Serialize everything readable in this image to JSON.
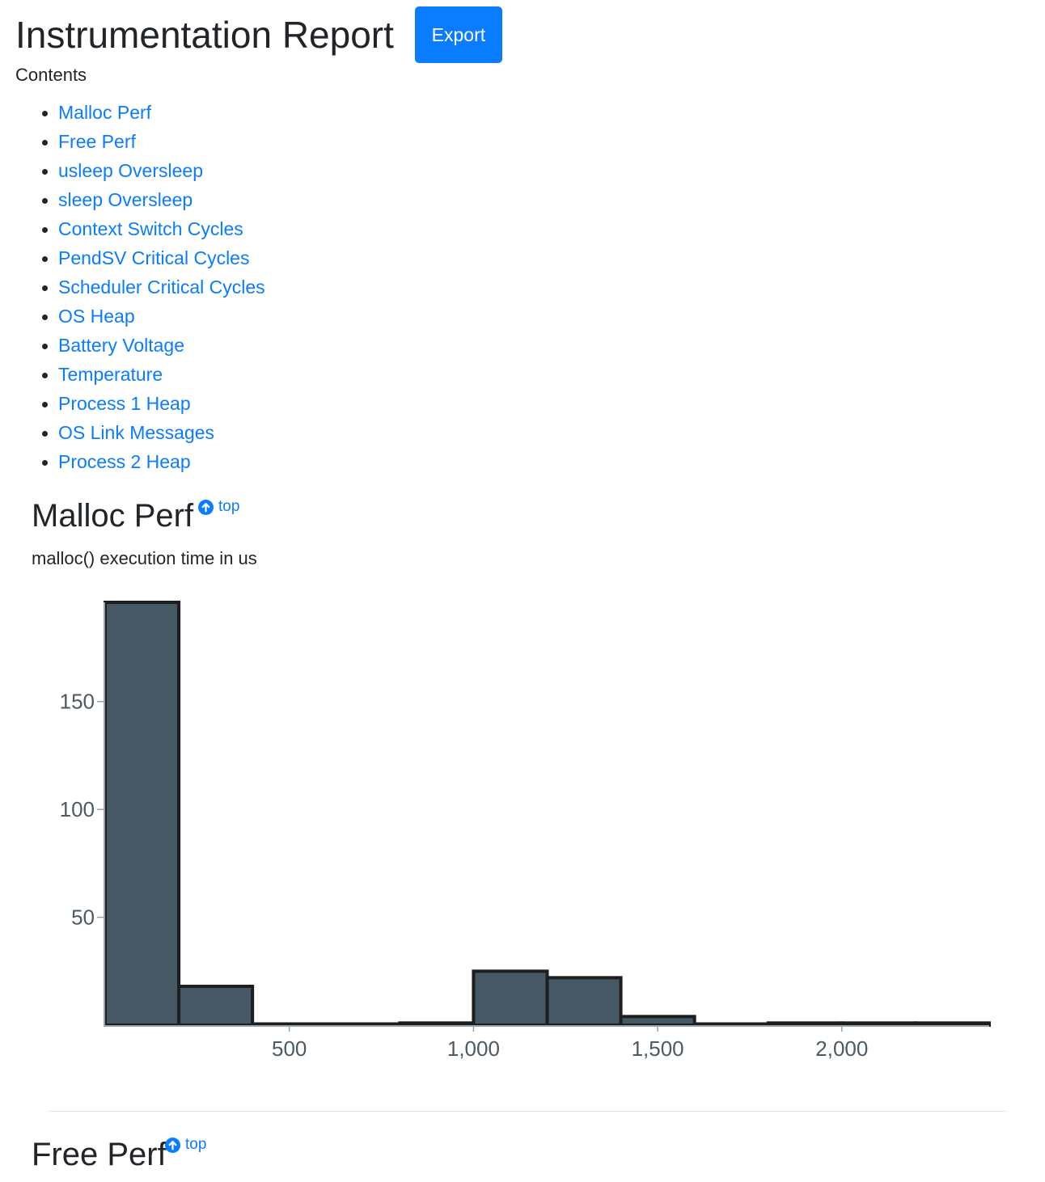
{
  "header": {
    "title": "Instrumentation Report",
    "export_label": "Export"
  },
  "contents": {
    "label": "Contents",
    "items": [
      {
        "label": "Malloc Perf"
      },
      {
        "label": "Free Perf"
      },
      {
        "label": "usleep Oversleep"
      },
      {
        "label": "sleep Oversleep"
      },
      {
        "label": "Context Switch Cycles"
      },
      {
        "label": "PendSV Critical Cycles"
      },
      {
        "label": "Scheduler Critical Cycles"
      },
      {
        "label": "OS Heap"
      },
      {
        "label": "Battery Voltage"
      },
      {
        "label": "Temperature"
      },
      {
        "label": "Process 1 Heap"
      },
      {
        "label": "OS Link Messages"
      },
      {
        "label": "Process 2 Heap"
      }
    ]
  },
  "sections": [
    {
      "title": "Malloc Perf",
      "top_label": "top",
      "description": "malloc() execution time in us"
    },
    {
      "title": "Free Perf",
      "top_label": "top"
    }
  ],
  "colors": {
    "link": "#0a7cff",
    "bar_fill": "#465863",
    "bar_stroke": "#1c1e20",
    "axis_text": "#4d5a63"
  },
  "chart_data": {
    "type": "bar",
    "bins": [
      {
        "x0": 0,
        "x1": 200,
        "value": 196
      },
      {
        "x0": 200,
        "x1": 400,
        "value": 18
      },
      {
        "x0": 400,
        "x1": 600,
        "value": 0
      },
      {
        "x0": 600,
        "x1": 800,
        "value": 0
      },
      {
        "x0": 800,
        "x1": 1000,
        "value": 1
      },
      {
        "x0": 1000,
        "x1": 1200,
        "value": 25
      },
      {
        "x0": 1200,
        "x1": 1400,
        "value": 22
      },
      {
        "x0": 1400,
        "x1": 1600,
        "value": 4
      },
      {
        "x0": 1600,
        "x1": 1800,
        "value": 0
      },
      {
        "x0": 1800,
        "x1": 2000,
        "value": 1
      },
      {
        "x0": 2000,
        "x1": 2200,
        "value": 1
      },
      {
        "x0": 2200,
        "x1": 2400,
        "value": 1
      }
    ],
    "xlim": [
      0,
      2400
    ],
    "ylim": [
      0,
      196
    ],
    "xticks": [
      500,
      1000,
      1500,
      2000
    ],
    "xtick_labels": [
      "500",
      "1,000",
      "1,500",
      "2,000"
    ],
    "yticks": [
      50,
      100,
      150
    ],
    "ytick_labels": [
      "50",
      "100",
      "150"
    ],
    "title": "",
    "xlabel": "",
    "ylabel": "",
    "grid": false
  }
}
